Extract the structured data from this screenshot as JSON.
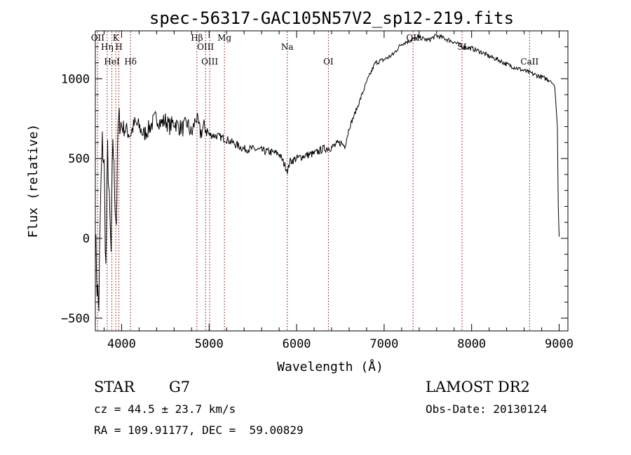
{
  "chart_data": {
    "type": "line",
    "title": "spec-56317-GAC105N57V2_sp12-219.fits",
    "xlabel": "Wavelength (Å)",
    "ylabel": "Flux (relative)",
    "xlim": [
      3700,
      9100
    ],
    "ylim": [
      -580,
      1300
    ],
    "xticks": [
      4000,
      5000,
      6000,
      7000,
      8000,
      9000
    ],
    "yticks": [
      -500,
      0,
      500,
      1000
    ],
    "series": [
      {
        "x": [
          3700,
          3720,
          3740,
          3760,
          3780,
          3800,
          3820,
          3840,
          3860,
          3880,
          3900,
          3920,
          3940,
          3960,
          3980,
          4000,
          4050,
          4100,
          4150,
          4200,
          4250,
          4300,
          4350,
          4400,
          4450,
          4500,
          4550,
          4600,
          4650,
          4700,
          4750,
          4800,
          4850,
          4900,
          4950,
          5000,
          5100,
          5200,
          5300,
          5400,
          5500,
          5600,
          5700,
          5800,
          5900,
          5920,
          6000,
          6100,
          6200,
          6300,
          6400,
          6500,
          6550,
          6600,
          6700,
          6800,
          6900,
          7000,
          7100,
          7200,
          7300,
          7400,
          7500,
          7600,
          7700,
          7800,
          7900,
          8000,
          8100,
          8200,
          8300,
          8400,
          8500,
          8600,
          8700,
          8800,
          8900,
          8950,
          8980,
          8990,
          9000
        ],
        "y": [
          50,
          -300,
          -420,
          250,
          600,
          450,
          -200,
          550,
          200,
          -100,
          650,
          300,
          100,
          700,
          750,
          700,
          680,
          650,
          720,
          700,
          650,
          680,
          720,
          760,
          720,
          740,
          700,
          730,
          700,
          690,
          720,
          650,
          760,
          660,
          700,
          650,
          640,
          620,
          590,
          560,
          560,
          550,
          540,
          530,
          420,
          480,
          500,
          520,
          530,
          560,
          570,
          600,
          580,
          690,
          830,
          980,
          1100,
          1120,
          1150,
          1220,
          1240,
          1260,
          1240,
          1270,
          1250,
          1230,
          1200,
          1190,
          1170,
          1140,
          1120,
          1090,
          1070,
          1050,
          1030,
          1010,
          990,
          950,
          700,
          200,
          10
        ]
      }
    ],
    "lines": [
      {
        "label": "OII",
        "x": 3727
      },
      {
        "label": "Hη",
        "x": 3835
      },
      {
        "label": "HeI",
        "x": 3889
      },
      {
        "label": "K",
        "x": 3934
      },
      {
        "label": "H",
        "x": 3969
      },
      {
        "label": "Hδ",
        "x": 4102
      },
      {
        "label": "Hβ",
        "x": 4861
      },
      {
        "label": "OIII",
        "x": 4959
      },
      {
        "label": "OIII",
        "x": 5007
      },
      {
        "label": "Mg",
        "x": 5175
      },
      {
        "label": "Na",
        "x": 5893
      },
      {
        "label": "OI",
        "x": 6363
      },
      {
        "label": "OII",
        "x": 7330
      },
      {
        "label": "SI",
        "x": 7890
      },
      {
        "label": "CaII",
        "x": 8662
      }
    ]
  },
  "info": {
    "class": "STAR",
    "subclass": "G7",
    "survey": "LAMOST DR2",
    "cz": "cz = 44.5 ± 23.7 km/s",
    "obs_date": "Obs-Date: 20130124",
    "radec": "RA = 109.91177, DEC =  59.00829"
  }
}
